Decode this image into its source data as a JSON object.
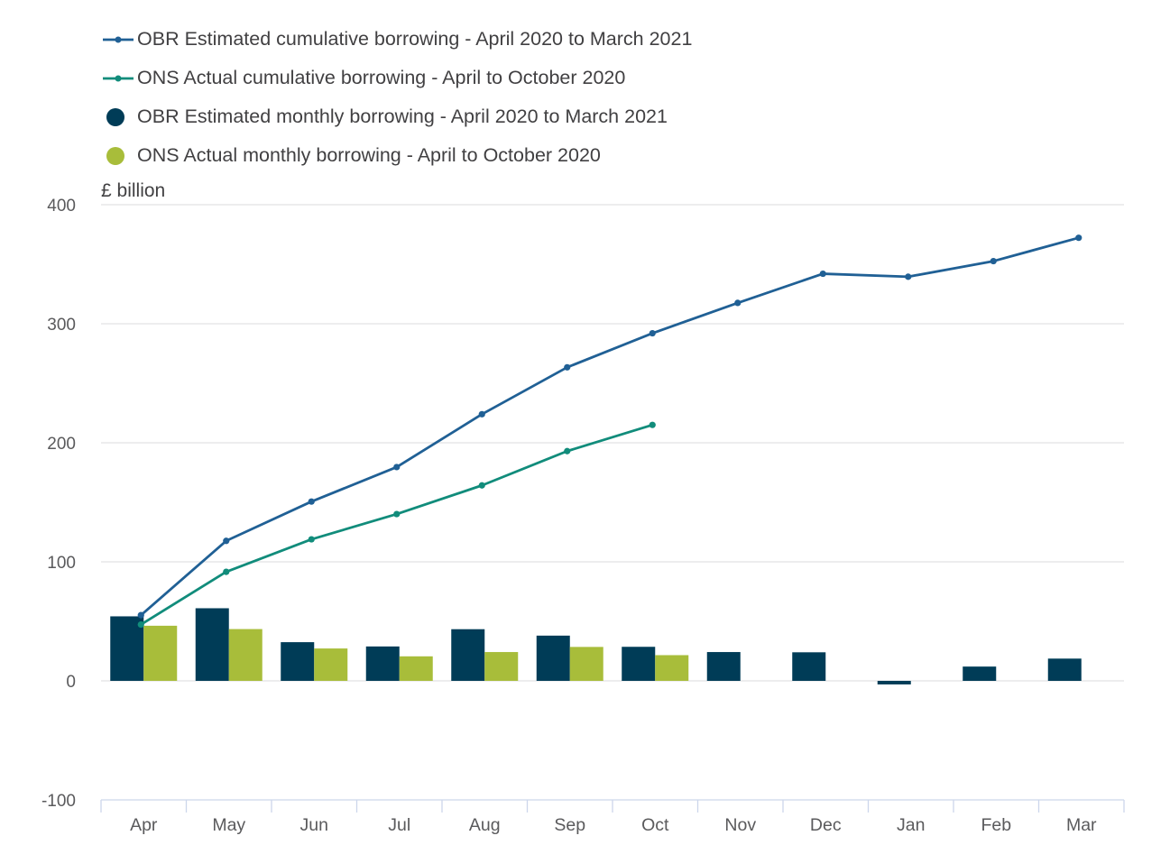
{
  "chart_data": {
    "type": "bar",
    "title": "",
    "xlabel": "",
    "ylabel": "£ billion",
    "ylim": [
      -100,
      400
    ],
    "y_ticks": [
      {
        "value": -100,
        "label": "-100"
      },
      {
        "value": 0,
        "label": "0"
      },
      {
        "value": 100,
        "label": "100"
      },
      {
        "value": 200,
        "label": "200"
      },
      {
        "value": 300,
        "label": "300"
      },
      {
        "value": 400,
        "label": "400"
      }
    ],
    "grid": true,
    "legend_position": "top-left",
    "categories": [
      "Apr",
      "May",
      "Jun",
      "Jul",
      "Aug",
      "Sep",
      "Oct",
      "Nov",
      "Dec",
      "Jan",
      "Feb",
      "Mar"
    ],
    "series": [
      {
        "name": "OBR Estimated cumulative borrowing - April 2020 to March 2021",
        "type": "line",
        "color": "#206095",
        "values": [
          55.2,
          117.6,
          150.6,
          179.6,
          224.0,
          263.4,
          292.0,
          317.5,
          342.0,
          339.5,
          352.6,
          372.2
        ]
      },
      {
        "name": "ONS Actual cumulative borrowing - April to October 2020",
        "type": "line",
        "color": "#118C7B",
        "values": [
          47.3,
          91.6,
          118.9,
          140.1,
          164.2,
          193.0,
          215.0,
          null,
          null,
          null,
          null,
          null
        ]
      },
      {
        "name": "OBR Estimated monthly borrowing - April 2020 to March 2021",
        "type": "bar",
        "color": "#003C57",
        "values": [
          54.2,
          61.0,
          32.5,
          28.9,
          43.4,
          38.0,
          28.6,
          24.2,
          24.0,
          -3.0,
          12.0,
          18.7
        ]
      },
      {
        "name": "ONS Actual monthly borrowing - April to October 2020",
        "type": "bar",
        "color": "#A8BD3A",
        "values": [
          46.3,
          43.5,
          27.2,
          20.6,
          24.2,
          28.5,
          21.6,
          null,
          null,
          null,
          null,
          null
        ]
      }
    ]
  }
}
